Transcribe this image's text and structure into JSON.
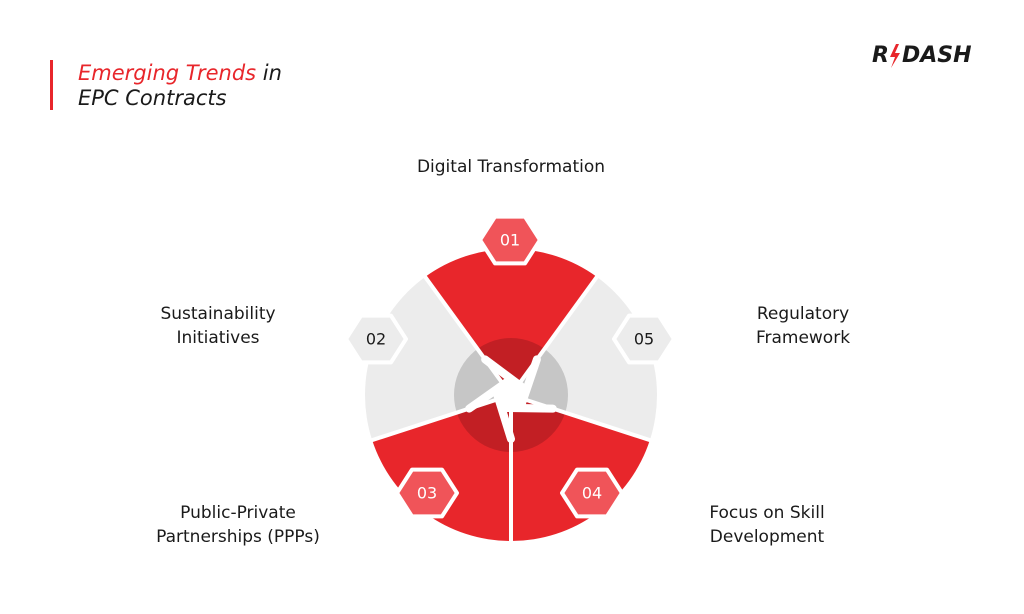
{
  "header": {
    "title_highlight": "Emerging Trends",
    "title_rest": "in",
    "title_line2": "EPC Contracts"
  },
  "logo": {
    "left": "R",
    "right": "DASH"
  },
  "items": [
    {
      "number": "01",
      "label": [
        "Digital Transformation"
      ]
    },
    {
      "number": "02",
      "label": [
        "Sustainability",
        "Initiatives"
      ]
    },
    {
      "number": "03",
      "label": [
        "Public-Private",
        "Partnerships (PPPs)"
      ]
    },
    {
      "number": "04",
      "label": [
        "Focus on Skill",
        "Development"
      ]
    },
    {
      "number": "05",
      "label": [
        "Regulatory",
        "Framework"
      ]
    }
  ]
}
